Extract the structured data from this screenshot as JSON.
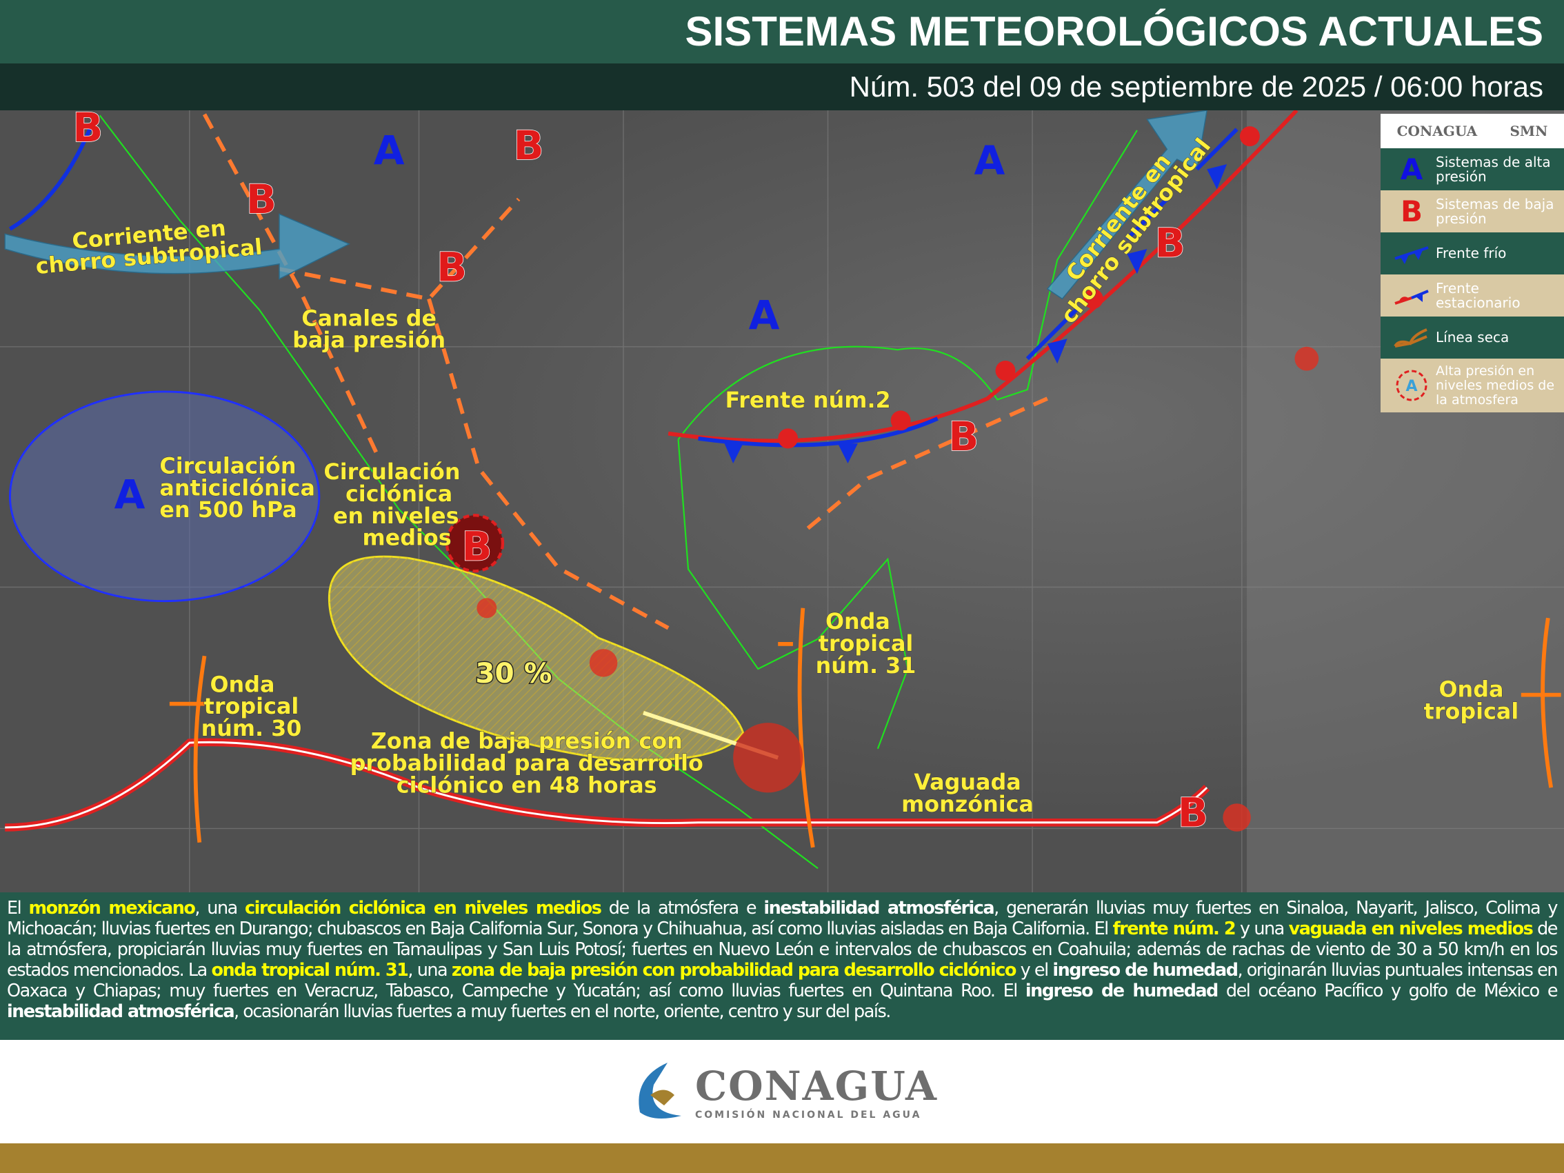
{
  "header": {
    "title": "SISTEMAS METEOROLÓGICOS ACTUALES",
    "subtitle": "Núm. 503 del 09 de septiembre de 2025 / 06:00 horas"
  },
  "map": {
    "highs": [
      "A",
      "A",
      "A",
      "A"
    ],
    "lows": [
      "B",
      "B",
      "B",
      "B",
      "B",
      "B",
      "B",
      "B"
    ],
    "labels": {
      "jet1a": "Corriente en",
      "jet1b": "chorro subtropical",
      "jet2a": "Corriente en",
      "jet2b": "chorro subtropical",
      "canal1": "Canales de",
      "canal2": "baja presión",
      "anti1": "Circulación",
      "anti2": "anticiclónica",
      "anti3": "en 500 hPa",
      "cic1": "Circulación",
      "cic2": "ciclónica",
      "cic3": "en niveles",
      "cic4": "medios",
      "front": "Frente núm.2",
      "prob": "30 %",
      "zona1": "Zona de baja presión con",
      "zona2": "probabilidad para desarrollo",
      "zona3": "ciclónico en 48 horas",
      "ot30a": "Onda",
      "ot30b": "tropical",
      "ot30c": "núm. 30",
      "ot31a": "Onda",
      "ot31b": "tropical",
      "ot31c": "núm. 31",
      "vag1": "Vaguada",
      "vag2": "monzónica",
      "ot1": "Onda",
      "ot2": "tropical"
    },
    "colors": {
      "high": "#1020e0",
      "low": "#e01a1a",
      "cold_front": "#1030e0",
      "trough": "#ff7a30",
      "itcz": "#e02020",
      "tropical_wave": "#ff7a10",
      "coast": "#20e020"
    }
  },
  "legend": {
    "logo_left": "CONAGUA",
    "logo_right": "SMN",
    "items": [
      {
        "icon": "A",
        "label": "Sistemas de alta presión"
      },
      {
        "icon": "B",
        "label": "Sistemas de baja presión"
      },
      {
        "icon": "cold-front",
        "label": "Frente frío"
      },
      {
        "icon": "stationary-front",
        "label": "Frente estacionario"
      },
      {
        "icon": "dry-line",
        "label": "Línea seca"
      },
      {
        "icon": "mid-level-high",
        "label": "Alta presión en niveles medios de la atmosfera"
      }
    ]
  },
  "description": {
    "p": [
      "El ",
      "monzón mexicano",
      ", una ",
      "circulación ciclónica en niveles medios",
      " de la atmósfera e ",
      "inestabilidad atmosférica",
      ", generarán lluvias muy fuertes en Sinaloa, Nayarit, Jalisco, Colima y Michoacán; lluvias fuertes en Durango; chubascos en Baja California Sur, Sonora y Chihuahua, así como lluvias aisladas en Baja California. El ",
      "frente núm. 2",
      " y una ",
      "vaguada en niveles medios",
      " de la atmósfera, propiciarán lluvias muy fuertes en Tamaulipas y San Luis Potosí; fuertes en Nuevo León e intervalos de chubascos en Coahuila; además de rachas de viento de 30 a 50 km/h en los estados mencionados. La ",
      "onda tropical núm. 31",
      ", una ",
      "zona de baja presión con probabilidad para desarrollo ciclónico",
      " y el ",
      "ingreso de humedad",
      ", originarán lluvias puntuales intensas en Oaxaca y Chiapas; muy fuertes en Veracruz, Tabasco, Campeche y Yucatán; así como lluvias fuertes en Quintana Roo. El ",
      "ingreso de humedad",
      " del océano Pacífico y golfo de México e ",
      "inestabilidad atmosférica",
      ", ocasionarán lluvias fuertes a muy fuertes en el norte, oriente, centro y sur del país."
    ]
  },
  "footer": {
    "name": "CONAGUA",
    "subname": "COMISIÓN NACIONAL DEL AGUA"
  }
}
